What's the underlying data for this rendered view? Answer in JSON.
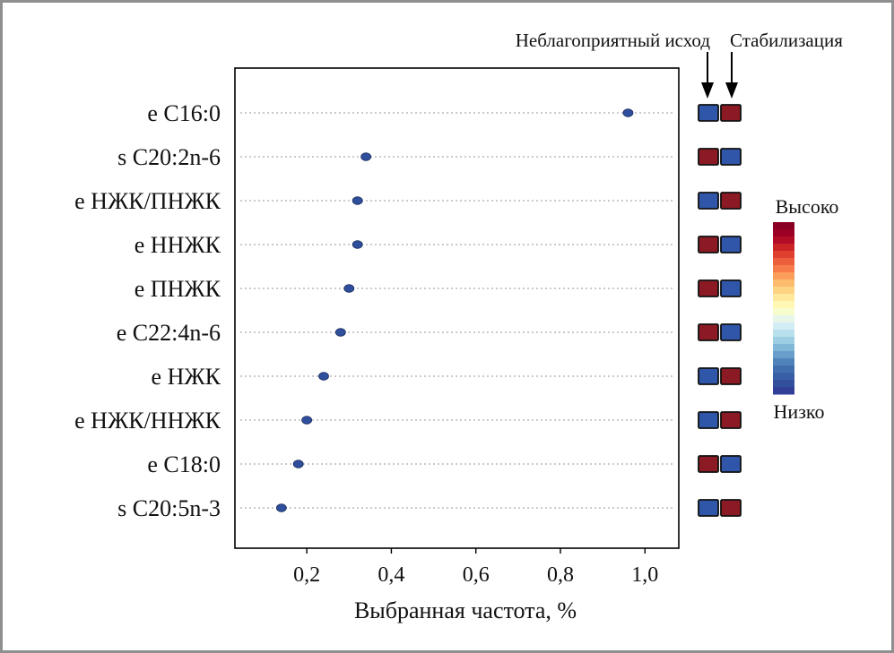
{
  "chart_data": {
    "type": "scatter",
    "xlabel": "Выбранная частота, %",
    "xlim": [
      0.03,
      1.08
    ],
    "xticks": [
      "0,2",
      "0,4",
      "0,6",
      "0,8",
      "1,0"
    ],
    "xtick_values": [
      0.2,
      0.4,
      0.6,
      0.8,
      1.0
    ],
    "grid": "horizontal dotted",
    "categories": [
      "e C16:0",
      "s C20:2n-6",
      "e НЖК/ПНЖК",
      "e ННЖК",
      "e ПНЖК",
      "e C22:4n-6",
      "e НЖК",
      "e НЖК/ННЖК",
      "e C18:0",
      "s C20:5n-3"
    ],
    "values": [
      0.96,
      0.34,
      0.32,
      0.32,
      0.3,
      0.28,
      0.24,
      0.2,
      0.18,
      0.14
    ],
    "point_color": "#2f4f9c",
    "heatmap": {
      "columns": [
        "Неблагоприятный исход",
        "Стабилизация"
      ],
      "levels": [
        [
          "low",
          "high"
        ],
        [
          "high",
          "low"
        ],
        [
          "low",
          "high"
        ],
        [
          "high",
          "low"
        ],
        [
          "high",
          "low"
        ],
        [
          "high",
          "low"
        ],
        [
          "low",
          "high"
        ],
        [
          "low",
          "high"
        ],
        [
          "high",
          "low"
        ],
        [
          "low",
          "high"
        ]
      ],
      "low_color": "#2f56a8",
      "high_color": "#8b1a24"
    },
    "colorbar": {
      "high_label": "Высоко",
      "low_label": "Низко",
      "colors": [
        "#313695",
        "#3458a0",
        "#4575b4",
        "#74add1",
        "#abd9e9",
        "#e0f3f8",
        "#ffffbf",
        "#fee090",
        "#fdae61",
        "#f46d43",
        "#d73027",
        "#a50026",
        "#7f0020"
      ]
    }
  }
}
